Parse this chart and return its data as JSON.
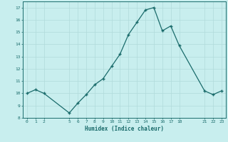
{
  "x": [
    0,
    1,
    2,
    5,
    6,
    7,
    8,
    9,
    10,
    11,
    12,
    13,
    14,
    15,
    16,
    17,
    18,
    21,
    22,
    23
  ],
  "y": [
    10.0,
    10.3,
    10.0,
    8.4,
    9.2,
    9.9,
    10.7,
    11.2,
    12.2,
    13.2,
    14.8,
    15.8,
    16.8,
    17.0,
    15.1,
    15.5,
    13.9,
    10.2,
    9.9,
    10.2
  ],
  "xlim": [
    -0.5,
    23.5
  ],
  "ylim": [
    8,
    17.5
  ],
  "xticks": [
    0,
    1,
    2,
    5,
    6,
    7,
    8,
    9,
    10,
    11,
    12,
    13,
    14,
    15,
    16,
    17,
    18,
    21,
    22,
    23
  ],
  "yticks": [
    8,
    9,
    10,
    11,
    12,
    13,
    14,
    15,
    16,
    17
  ],
  "xlabel": "Humidex (Indice chaleur)",
  "line_color": "#1a6b6b",
  "marker_color": "#1a6b6b",
  "bg_color": "#c8eeee",
  "grid_color": "#b0dada",
  "tick_color": "#1a6b6b",
  "xlabel_color": "#1a6b6b",
  "spine_color": "#1a6b6b"
}
